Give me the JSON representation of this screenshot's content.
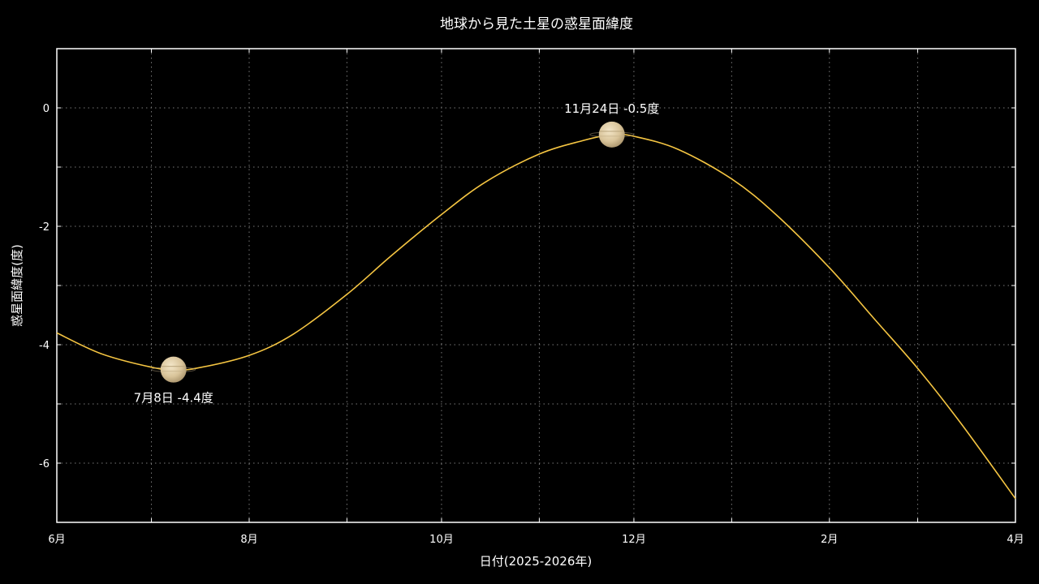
{
  "chart_data": {
    "type": "line",
    "title": "地球から見た土星の惑星面緯度",
    "xlabel": "日付(2025-2026年)",
    "ylabel": "惑星面緯度(度)",
    "xlim": [
      "2025-06-01",
      "2026-04-01"
    ],
    "ylim": [
      -7,
      1
    ],
    "x_ticks": [
      "6月",
      "8月",
      "10月",
      "12月",
      "2月",
      "4月"
    ],
    "y_ticks": [
      "-6",
      "-4",
      "-2",
      "0"
    ],
    "y_tick_values": [
      -6,
      -4,
      -2,
      0
    ],
    "grid": true,
    "colors": {
      "background": "#000000",
      "curve": "#f5c542",
      "grid": "#7a7a7a",
      "text": "#ffffff"
    },
    "series": [
      {
        "x": [
          "2025-06-01",
          "2025-06-15",
          "2025-07-01",
          "2025-07-08",
          "2025-07-15",
          "2025-08-01",
          "2025-08-15",
          "2025-09-01",
          "2025-09-15",
          "2025-10-01",
          "2025-10-15",
          "2025-11-01",
          "2025-11-15",
          "2025-11-24",
          "2025-12-01",
          "2025-12-15",
          "2026-01-01",
          "2026-01-15",
          "2026-02-01",
          "2026-02-15",
          "2026-03-01",
          "2026-03-15",
          "2026-04-01"
        ],
        "y": [
          -3.8,
          -4.15,
          -4.38,
          -4.42,
          -4.4,
          -4.18,
          -3.82,
          -3.15,
          -2.5,
          -1.8,
          -1.25,
          -0.78,
          -0.55,
          -0.45,
          -0.48,
          -0.7,
          -1.2,
          -1.8,
          -2.7,
          -3.55,
          -4.4,
          -5.35,
          -6.6
        ]
      }
    ],
    "annotations": [
      {
        "text": "7月8日 -4.4度",
        "x": "2025-07-08",
        "y": -4.42,
        "position": "below",
        "marker": "saturn-icon"
      },
      {
        "text": "11月24日 -0.5度",
        "x": "2025-11-24",
        "y": -0.45,
        "position": "above",
        "marker": "saturn-icon"
      }
    ]
  }
}
